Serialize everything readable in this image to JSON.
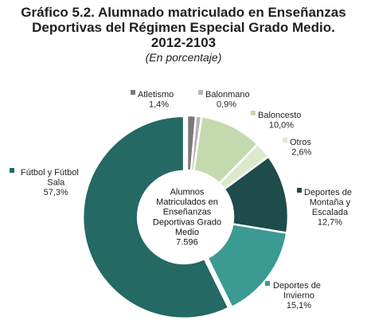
{
  "title_lines": [
    "Gráfico 5.2. Alumnado matriculado en Enseñanzas",
    "Deportivas del Régimen Especial Grado Medio.",
    "2012-2103"
  ],
  "subtitle": "(En porcentaje)",
  "center_label": {
    "lines": [
      "Alumnos",
      "Matriculados en",
      "Enseñanzas",
      "Deportivas Grado",
      "Medio"
    ],
    "total": "7.596"
  },
  "chart_data": {
    "type": "pie",
    "title": "Gráfico 5.2. Alumnado matriculado en Enseñanzas Deportivas del Régimen Especial Grado Medio. 2012-2103",
    "subtitle": "(En porcentaje)",
    "total": 7596,
    "slices": [
      {
        "name": "Atletismo",
        "label_lines": [
          "Atletismo"
        ],
        "value": 1.4,
        "value_text": "1,4%",
        "color": "#7a7a7a"
      },
      {
        "name": "Balonmano",
        "label_lines": [
          "Balonmano"
        ],
        "value": 0.9,
        "value_text": "0,9%",
        "color": "#b5b5b5"
      },
      {
        "name": "Baloncesto",
        "label_lines": [
          "Baloncesto"
        ],
        "value": 10.0,
        "value_text": "10,0%",
        "color": "#c5d9ae"
      },
      {
        "name": "Otros",
        "label_lines": [
          "Otros"
        ],
        "value": 2.6,
        "value_text": "2,6%",
        "color": "#dde9cd"
      },
      {
        "name": "Deportes de Montaña y Escalada",
        "label_lines": [
          "Deportes de",
          "Montaña y",
          "Escalada"
        ],
        "value": 12.7,
        "value_text": "12,7%",
        "color": "#1e4c4a"
      },
      {
        "name": "Deportes de Invierno",
        "label_lines": [
          "Deportes de",
          "Invierno"
        ],
        "value": 15.1,
        "value_text": "15,1%",
        "color": "#3b9a92"
      },
      {
        "name": "Fútbol y Fútbol Sala",
        "label_lines": [
          "Fútbol y Fútbol",
          "Sala"
        ],
        "value": 57.3,
        "value_text": "57,3%",
        "color": "#246963"
      }
    ]
  }
}
